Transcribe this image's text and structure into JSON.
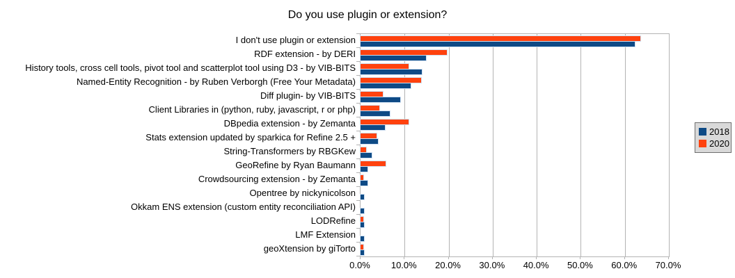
{
  "title": "Do you use plugin or extension?",
  "chart_data": {
    "type": "bar",
    "orientation": "horizontal",
    "title": "Do you use plugin or extension?",
    "categories": [
      "I don't use plugin or extension",
      "RDF extension - by DERI",
      "History tools, cross cell tools, pivot tool and scatterplot tool using D3 - by VIB-BITS",
      "Named-Entity Recognition - by Ruben Verborgh (Free Your Metadata)",
      "Diff plugin- by VIB-BITS",
      "Client Libraries in (python, ruby, javascript, r or php)",
      "DBpedia extension - by Zemanta",
      "Stats extension updated by sparkica for Refine 2.5 +",
      "String-Transformers by RBGKew",
      "GeoRefine by Ryan Baumann",
      "Crowdsourcing extension - by Zemanta",
      "Opentree by nickynicolson",
      "Okkam ENS extension (custom entity reconciliation API)",
      "LODRefine",
      "LMF Extension",
      "geoXtension by giTorto"
    ],
    "series": [
      {
        "name": "2018",
        "color": "#0e4a85",
        "values": [
          62.3,
          14.8,
          13.9,
          11.4,
          9.0,
          6.6,
          5.6,
          4.0,
          2.5,
          1.6,
          1.6,
          0.8,
          0.8,
          0.8,
          0.8,
          0.8
        ]
      },
      {
        "name": "2020",
        "color": "#ff420e",
        "values": [
          63.5,
          19.6,
          10.9,
          13.7,
          5.1,
          4.3,
          10.9,
          3.7,
          1.3,
          5.7,
          0.7,
          0.0,
          0.0,
          0.7,
          0.0,
          0.7
        ]
      }
    ],
    "x_axis": {
      "min": 0,
      "max": 70,
      "tick_labels": [
        "0.0%",
        "10.0%",
        "20.0%",
        "30.0%",
        "40.0%",
        "50.0%",
        "60.0%",
        "70.0%"
      ],
      "tick_values": [
        0,
        10,
        20,
        30,
        40,
        50,
        60,
        70
      ]
    },
    "grid": true,
    "legend_position": "right",
    "colors": {
      "grid": "#b3b3b3",
      "axis": "#b3b3b3",
      "bar_outline": "#cfe0f2",
      "legend_background": "#d9d9d9",
      "legend_border": "#6e6e6e",
      "text": "#000000"
    }
  }
}
